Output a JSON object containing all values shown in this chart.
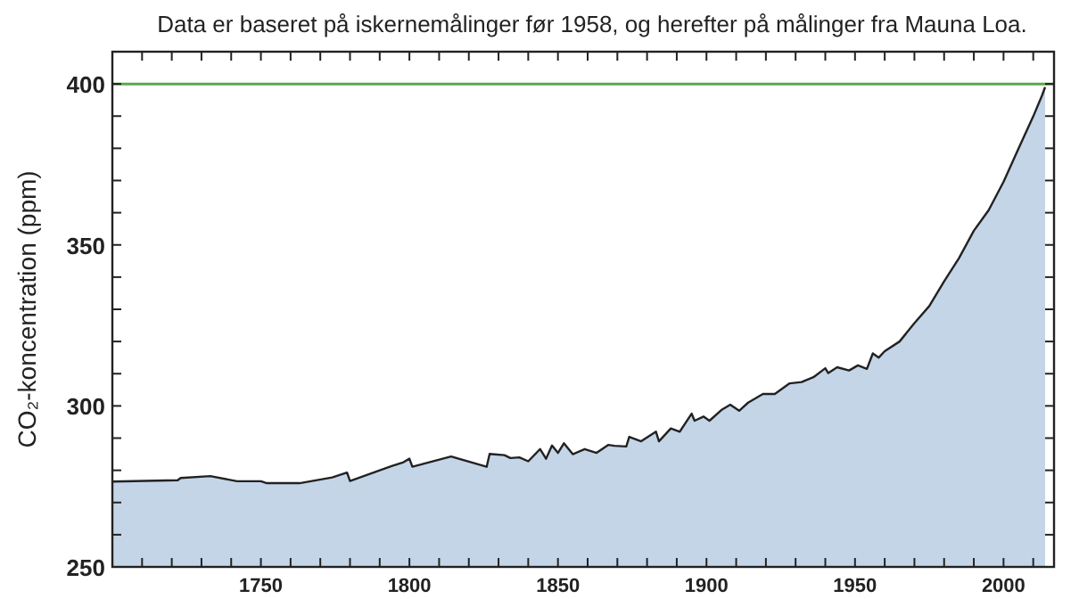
{
  "chart_data": {
    "type": "area",
    "title": "Data er baseret på iskernemålinger før 1958, og herefter på målinger fra Mauna Loa.",
    "ylabel": "CO₂-koncentration (ppm)",
    "x": [
      1700,
      1722,
      1723,
      1733,
      1742,
      1750,
      1752,
      1763,
      1774,
      1779,
      1780,
      1794,
      1798,
      1800,
      1801,
      1814,
      1826,
      1827,
      1832,
      1834,
      1837,
      1840,
      1844,
      1846,
      1848,
      1850,
      1852,
      1855,
      1859,
      1863,
      1867,
      1869,
      1873,
      1874,
      1878,
      1883,
      1884,
      1888,
      1891,
      1895,
      1896,
      1899,
      1901,
      1905,
      1908,
      1911,
      1914,
      1919,
      1923,
      1928,
      1932,
      1936,
      1940,
      1941,
      1944,
      1948,
      1951,
      1954,
      1956,
      1958,
      1960,
      1965,
      1970,
      1975,
      1980,
      1985,
      1990,
      1995,
      2000,
      2005,
      2010,
      2013,
      2014
    ],
    "series": [
      {
        "color": "#c5d5e8",
        "values": [
          276.5,
          276.9,
          277.6,
          278.2,
          276.6,
          276.6,
          276.0,
          276.0,
          277.8,
          279.3,
          276.7,
          281.3,
          282.5,
          283.6,
          281.1,
          284.3,
          281.1,
          285.1,
          284.7,
          283.8,
          284.0,
          282.8,
          286.6,
          283.6,
          287.7,
          285.4,
          288.4,
          285.0,
          286.6,
          285.4,
          287.9,
          287.6,
          287.4,
          290.4,
          289.0,
          292.0,
          289.0,
          293.0,
          292.0,
          297.6,
          295.4,
          296.7,
          295.4,
          298.7,
          300.4,
          298.5,
          301.0,
          303.7,
          303.7,
          307.0,
          307.4,
          308.9,
          311.7,
          310.2,
          312.0,
          311.0,
          312.6,
          311.5,
          316.3,
          315.0,
          317.0,
          320.0,
          325.7,
          331.0,
          338.7,
          345.9,
          354.4,
          360.8,
          369.6,
          379.8,
          389.9,
          396.5,
          399.0
        ]
      }
    ],
    "xlim": [
      1700,
      2017
    ],
    "ylim": [
      250,
      410
    ],
    "xticks": [
      {
        "value": 1700,
        "label": null
      },
      {
        "value": 1710,
        "label": null
      },
      {
        "value": 1720,
        "label": null
      },
      {
        "value": 1730,
        "label": null
      },
      {
        "value": 1740,
        "label": null
      },
      1750,
      {
        "value": 1760,
        "label": null
      },
      {
        "value": 1770,
        "label": null
      },
      {
        "value": 1780,
        "label": null
      },
      {
        "value": 1790,
        "label": null
      },
      1800,
      {
        "value": 1810,
        "label": null
      },
      {
        "value": 1820,
        "label": null
      },
      {
        "value": 1830,
        "label": null
      },
      {
        "value": 1840,
        "label": null
      },
      1850,
      {
        "value": 1860,
        "label": null
      },
      {
        "value": 1870,
        "label": null
      },
      {
        "value": 1880,
        "label": null
      },
      {
        "value": 1890,
        "label": null
      },
      1900,
      {
        "value": 1910,
        "label": null
      },
      {
        "value": 1920,
        "label": null
      },
      {
        "value": 1930,
        "label": null
      },
      {
        "value": 1940,
        "label": null
      },
      1950,
      {
        "value": 1960,
        "label": null
      },
      {
        "value": 1970,
        "label": null
      },
      {
        "value": 1980,
        "label": null
      },
      {
        "value": 1990,
        "label": null
      },
      2000,
      {
        "value": 2010,
        "label": null
      }
    ],
    "yticks": [
      250,
      {
        "value": 260,
        "label": null
      },
      {
        "value": 270,
        "label": null
      },
      {
        "value": 280,
        "label": null
      },
      {
        "value": 290,
        "label": null
      },
      300,
      {
        "value": 310,
        "label": null
      },
      {
        "value": 320,
        "label": null
      },
      {
        "value": 330,
        "label": null
      },
      {
        "value": 340,
        "label": null
      },
      350,
      {
        "value": 360,
        "label": null
      },
      {
        "value": 370,
        "label": null
      },
      {
        "value": 380,
        "label": null
      },
      {
        "value": 390,
        "label": null
      },
      400,
      {
        "value": 410,
        "label": null
      }
    ],
    "ref_lines": [
      {
        "axis": "y",
        "value": 400,
        "color": "#5aa84a"
      }
    ],
    "grid": false
  }
}
